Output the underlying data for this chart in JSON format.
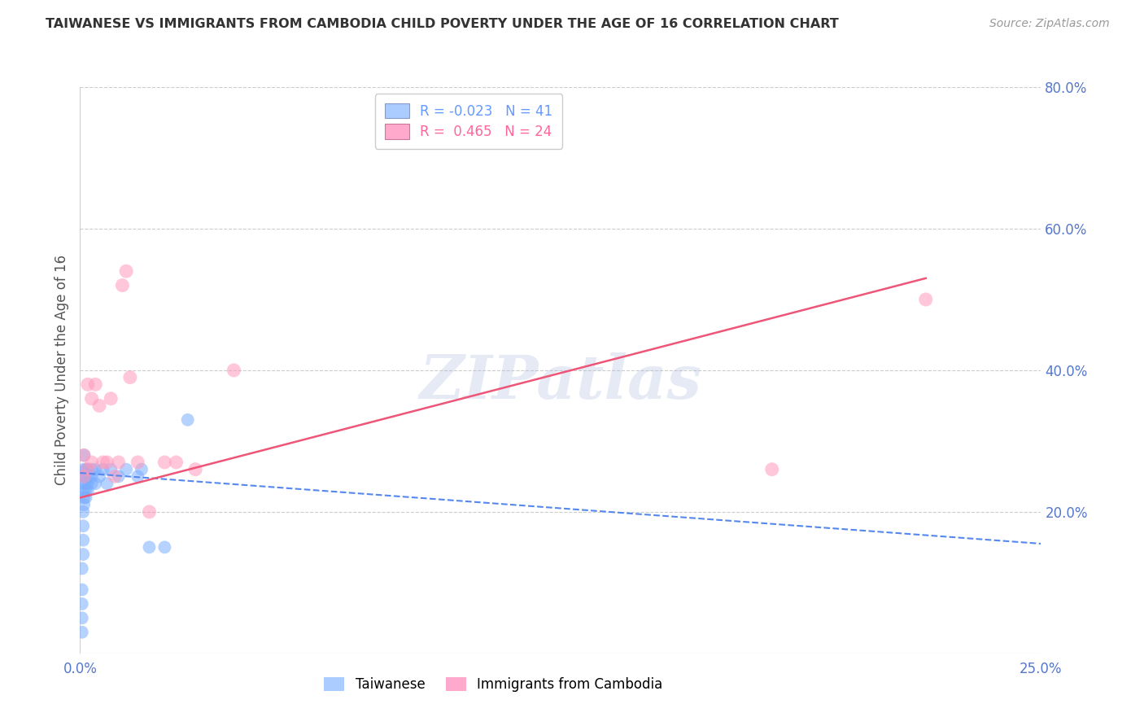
{
  "title": "TAIWANESE VS IMMIGRANTS FROM CAMBODIA CHILD POVERTY UNDER THE AGE OF 16 CORRELATION CHART",
  "source": "Source: ZipAtlas.com",
  "ylabel": "Child Poverty Under the Age of 16",
  "xlim": [
    0.0,
    0.25
  ],
  "ylim": [
    0.0,
    0.8
  ],
  "legend_entries": [
    {
      "label": "R = -0.023   N = 41",
      "color": "#6699ff"
    },
    {
      "label": "R =  0.465   N = 24",
      "color": "#ff6699"
    }
  ],
  "taiwanese_x": [
    0.0005,
    0.0005,
    0.0005,
    0.0005,
    0.0005,
    0.0008,
    0.0008,
    0.0008,
    0.0008,
    0.001,
    0.001,
    0.001,
    0.001,
    0.001,
    0.001,
    0.001,
    0.0015,
    0.0015,
    0.0015,
    0.0015,
    0.0015,
    0.002,
    0.002,
    0.002,
    0.002,
    0.003,
    0.003,
    0.003,
    0.004,
    0.004,
    0.005,
    0.006,
    0.007,
    0.008,
    0.01,
    0.012,
    0.015,
    0.016,
    0.018,
    0.022,
    0.028
  ],
  "taiwanese_y": [
    0.03,
    0.05,
    0.07,
    0.09,
    0.12,
    0.14,
    0.16,
    0.18,
    0.2,
    0.21,
    0.22,
    0.23,
    0.24,
    0.25,
    0.26,
    0.28,
    0.22,
    0.23,
    0.24,
    0.25,
    0.26,
    0.23,
    0.24,
    0.25,
    0.26,
    0.24,
    0.25,
    0.26,
    0.24,
    0.26,
    0.25,
    0.26,
    0.24,
    0.26,
    0.25,
    0.26,
    0.25,
    0.26,
    0.15,
    0.15,
    0.33
  ],
  "cambodia_x": [
    0.001,
    0.001,
    0.002,
    0.002,
    0.003,
    0.003,
    0.004,
    0.005,
    0.006,
    0.007,
    0.008,
    0.009,
    0.01,
    0.011,
    0.012,
    0.013,
    0.015,
    0.018,
    0.022,
    0.025,
    0.03,
    0.04,
    0.18,
    0.22
  ],
  "cambodia_y": [
    0.25,
    0.28,
    0.26,
    0.38,
    0.36,
    0.27,
    0.38,
    0.35,
    0.27,
    0.27,
    0.36,
    0.25,
    0.27,
    0.52,
    0.54,
    0.39,
    0.27,
    0.2,
    0.27,
    0.27,
    0.26,
    0.4,
    0.26,
    0.5
  ],
  "blue_line_x": [
    0.0,
    0.25
  ],
  "blue_line_y": [
    0.255,
    0.155
  ],
  "pink_line_x": [
    0.0,
    0.22
  ],
  "pink_line_y": [
    0.22,
    0.53
  ],
  "dot_color_taiwanese": "#7aadff",
  "dot_color_cambodia": "#ff99bb",
  "line_color_taiwanese": "#5588ee",
  "line_color_cambodia": "#ee5577",
  "background_color": "#ffffff",
  "grid_color": "#cccccc",
  "title_color": "#333333",
  "axis_color": "#5577cc",
  "watermark": "ZIPatlas",
  "watermark_color": "#aabbdd"
}
